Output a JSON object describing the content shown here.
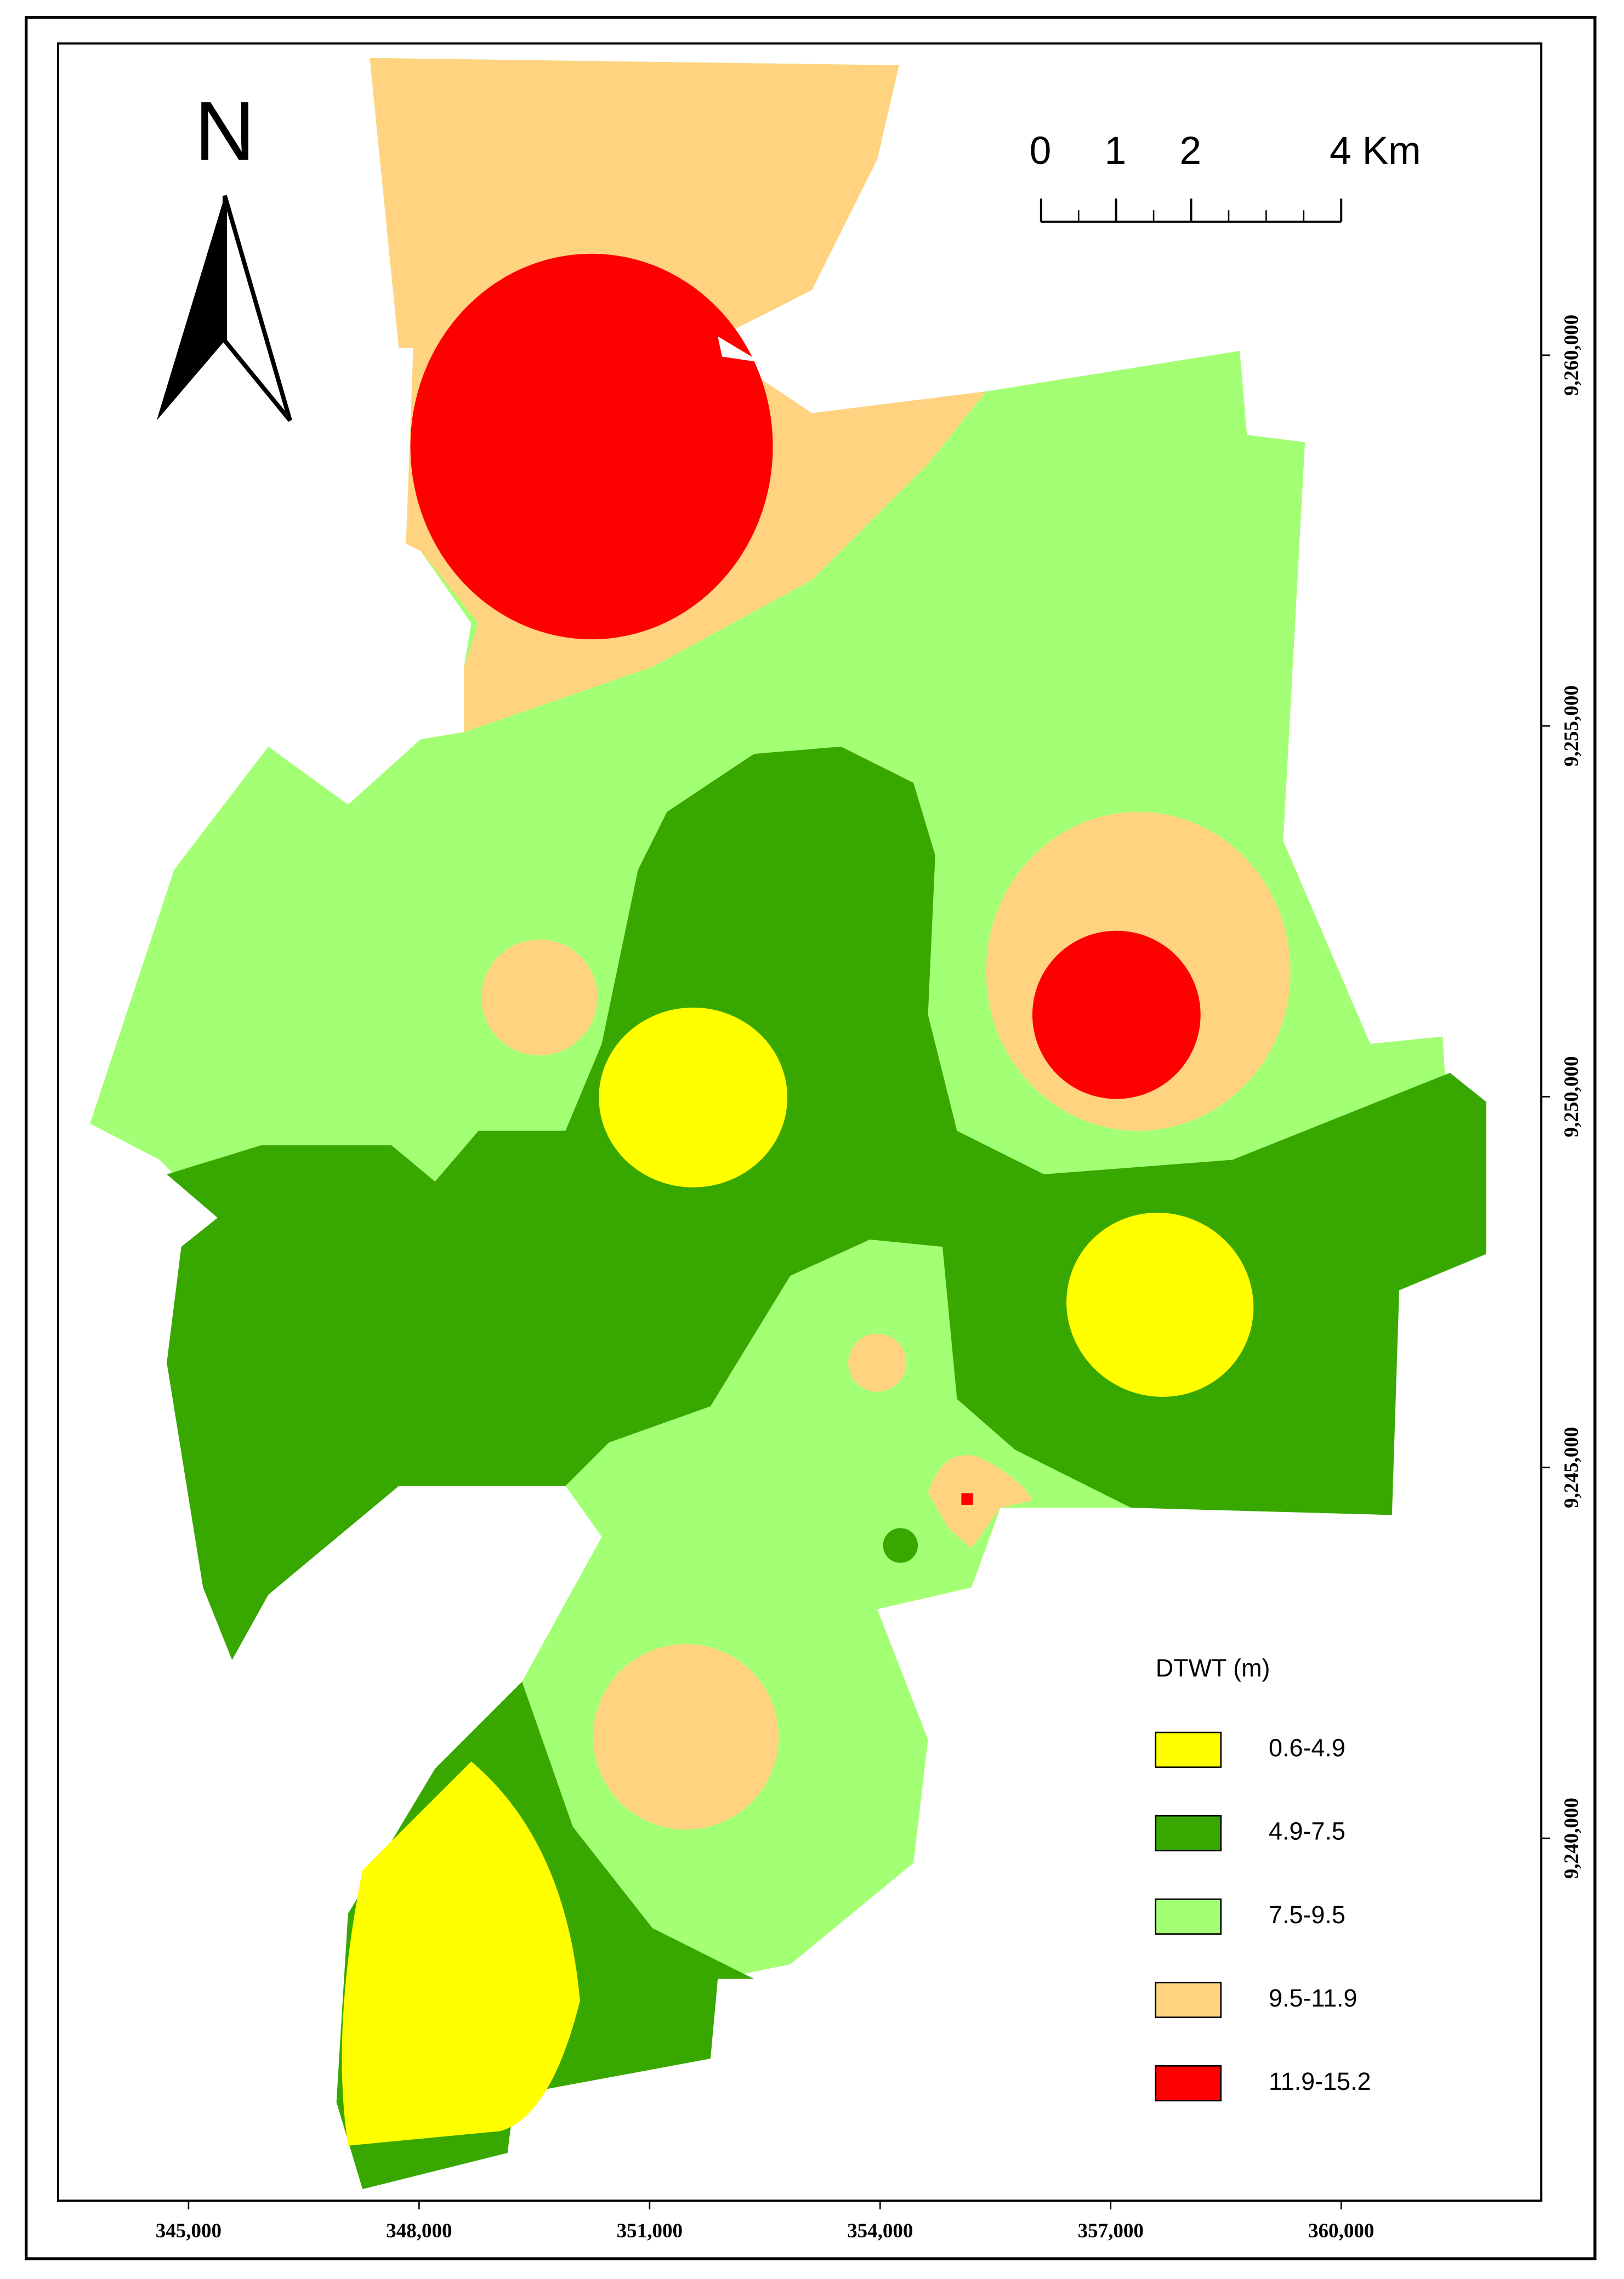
{
  "map": {
    "north_label": "N",
    "scale_bar": {
      "ticks": [
        0,
        1,
        2,
        {
          "value": 4,
          "label": "4 Km"
        }
      ]
    },
    "x_ticks": [
      {
        "value": 345000,
        "label": "345,000"
      },
      {
        "value": 348000,
        "label": "348,000"
      },
      {
        "value": 351000,
        "label": "351,000"
      },
      {
        "value": 354000,
        "label": "354,000"
      },
      {
        "value": 357000,
        "label": "357,000"
      },
      {
        "value": 360000,
        "label": "360,000"
      }
    ],
    "y_ticks": [
      {
        "value": 9260000,
        "label": "9,260,000"
      },
      {
        "value": 9255000,
        "label": "9,255,000"
      },
      {
        "value": 9250000,
        "label": "9,250,000"
      },
      {
        "value": 9245000,
        "label": "9,245,000"
      },
      {
        "value": 9240000,
        "label": "9,240,000"
      }
    ],
    "legend": {
      "title": "DTWT (m)",
      "items": [
        {
          "label": "0.6-4.9",
          "color": "#ffff00"
        },
        {
          "label": "4.9-7.5",
          "color": "#38a800"
        },
        {
          "label": "7.5-9.5",
          "color": "#a3ff73"
        },
        {
          "label": "9.5-11.9",
          "color": "#ffd37f"
        },
        {
          "label": "11.9-15.2",
          "color": "#ff0000"
        }
      ]
    }
  }
}
